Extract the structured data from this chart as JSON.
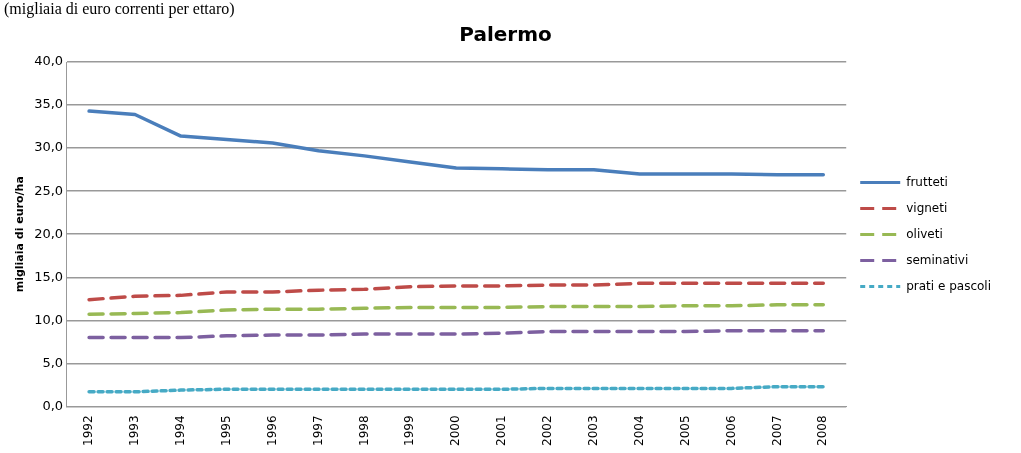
{
  "chart_data": {
    "type": "line",
    "title": "Palermo",
    "ylabel": "migliaia di euro/ha",
    "annotations": [
      "(migliaia di euro correnti per ettaro)"
    ],
    "categories": [
      "1992",
      "1993",
      "1994",
      "1995",
      "1996",
      "1997",
      "1998",
      "1999",
      "2000",
      "2001",
      "2002",
      "2003",
      "2004",
      "2005",
      "2006",
      "2007",
      "2008"
    ],
    "series": [
      {
        "name": "frutteti",
        "color": "#4a7ebb",
        "line_style": "solid",
        "values": [
          34.3,
          33.9,
          31.4,
          31.0,
          30.6,
          29.7,
          29.1,
          28.4,
          27.7,
          27.6,
          27.5,
          27.5,
          27.0,
          27.0,
          27.0,
          26.9,
          26.9
        ]
      },
      {
        "name": "vigneti",
        "color": "#be4b48",
        "line_style": "dashed",
        "values": [
          12.4,
          12.8,
          12.9,
          13.3,
          13.3,
          13.5,
          13.6,
          13.9,
          14.0,
          14.0,
          14.1,
          14.1,
          14.3,
          14.3,
          14.3,
          14.3,
          14.3
        ]
      },
      {
        "name": "oliveti",
        "color": "#98b954",
        "line_style": "dashed",
        "values": [
          10.7,
          10.8,
          10.9,
          11.2,
          11.3,
          11.3,
          11.4,
          11.5,
          11.5,
          11.5,
          11.6,
          11.6,
          11.6,
          11.7,
          11.7,
          11.8,
          11.8
        ]
      },
      {
        "name": "seminativi",
        "color": "#7d60a0",
        "line_style": "dashed",
        "values": [
          8.0,
          8.0,
          8.0,
          8.2,
          8.3,
          8.3,
          8.4,
          8.4,
          8.4,
          8.5,
          8.7,
          8.7,
          8.7,
          8.7,
          8.8,
          8.8,
          8.8
        ]
      },
      {
        "name": "prati e pascoli",
        "color": "#46aac5",
        "line_style": "dotted",
        "values": [
          1.7,
          1.7,
          1.9,
          2.0,
          2.0,
          2.0,
          2.0,
          2.0,
          2.0,
          2.0,
          2.1,
          2.1,
          2.1,
          2.1,
          2.1,
          2.3,
          2.3
        ]
      }
    ],
    "ylim": [
      0,
      40
    ],
    "yticks": [
      {
        "value": 0,
        "label": "0,0"
      },
      {
        "value": 5,
        "label": "5,0"
      },
      {
        "value": 10,
        "label": "10,0"
      },
      {
        "value": 15,
        "label": "15,0"
      },
      {
        "value": 20,
        "label": "20,0"
      },
      {
        "value": 25,
        "label": "25,0"
      },
      {
        "value": 30,
        "label": "30,0"
      },
      {
        "value": 35,
        "label": "35,0"
      },
      {
        "value": 40,
        "label": "40,0"
      }
    ],
    "grid": "y",
    "legend": "right",
    "marker": "none"
  }
}
